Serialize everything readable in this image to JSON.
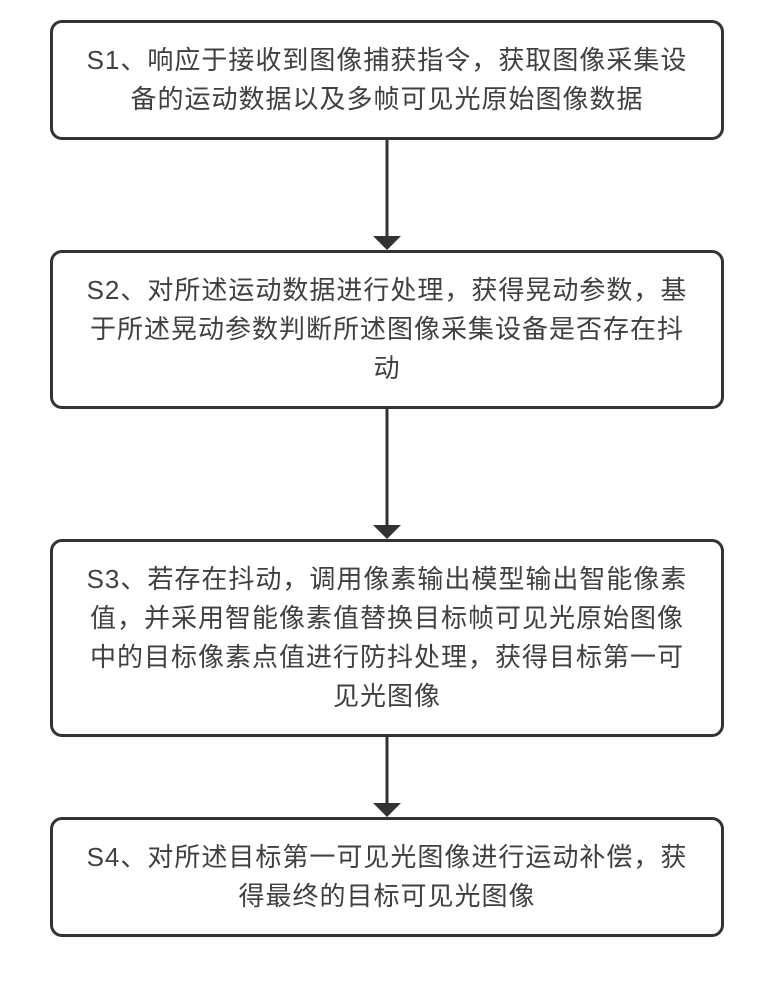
{
  "flowchart": {
    "type": "flowchart",
    "direction": "vertical",
    "background_color": "#ffffff",
    "node_border_color": "#333333",
    "node_border_width": 3,
    "node_border_radius": 12,
    "node_text_color": "#404040",
    "node_font_size": 26,
    "arrow_color": "#333333",
    "arrow_stroke_width": 3,
    "arrow_head_size": 14,
    "nodes": [
      {
        "id": "s1",
        "text": "S1、响应于接收到图像捕获指令，获取图像采集设备的运动数据以及多帧可见光原始图像数据",
        "height": 120
      },
      {
        "id": "s2",
        "text": "S2、对所述运动数据进行处理，获得晃动参数，基于所述晃动参数判断所述图像采集设备是否存在抖动",
        "height": 120
      },
      {
        "id": "s3",
        "text": "S3、若存在抖动，调用像素输出模型输出智能像素值，并采用智能像素值替换目标帧可见光原始图像中的目标像素点值进行防抖处理，获得目标第一可见光图像",
        "height": 190
      },
      {
        "id": "s4",
        "text": "S4、对所述目标第一可见光图像进行运动补偿，获得最终的目标可见光图像",
        "height": 120
      }
    ],
    "arrows": [
      {
        "from": "s1",
        "to": "s2",
        "length": 110
      },
      {
        "from": "s2",
        "to": "s3",
        "length": 130
      },
      {
        "from": "s3",
        "to": "s4",
        "length": 80
      }
    ]
  }
}
